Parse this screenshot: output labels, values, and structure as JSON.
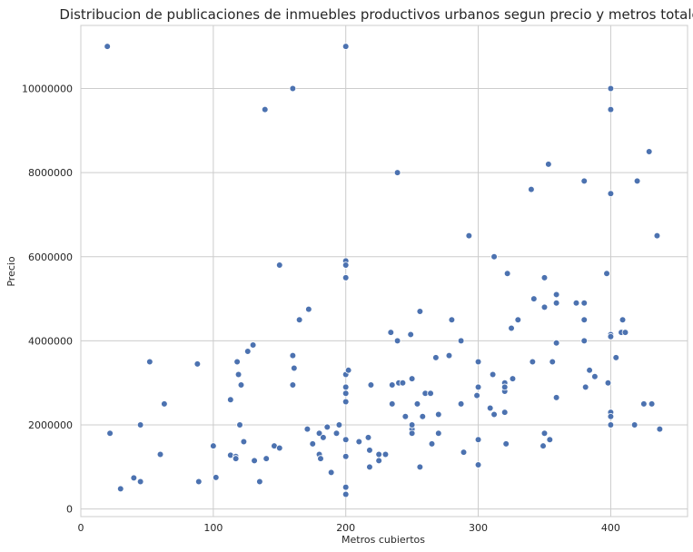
{
  "chart_data": {
    "type": "scatter",
    "title": "Distribucion de publicaciones de inmuebles productivos urbanos segun precio y metros totales",
    "xlabel": "Metros cubiertos",
    "ylabel": "Precio",
    "xlim": [
      0,
      458
    ],
    "ylim": [
      -180000,
      11500000
    ],
    "xticks": [
      0,
      100,
      200,
      300,
      400
    ],
    "yticks": [
      0,
      2000000,
      4000000,
      6000000,
      8000000,
      10000000
    ],
    "xtick_labels": [
      "0",
      "100",
      "200",
      "300",
      "400"
    ],
    "ytick_labels": [
      "0",
      "2000000",
      "4000000",
      "6000000",
      "8000000",
      "10000000"
    ],
    "grid": true,
    "marker_color": "#4c72b0",
    "points": [
      [
        20,
        11000000
      ],
      [
        22,
        1800000
      ],
      [
        30,
        480000
      ],
      [
        40,
        740000
      ],
      [
        45,
        650000
      ],
      [
        45,
        2000000
      ],
      [
        52,
        3500000
      ],
      [
        60,
        1300000
      ],
      [
        63,
        2500000
      ],
      [
        88,
        3450000
      ],
      [
        89,
        650000
      ],
      [
        100,
        1500000
      ],
      [
        102,
        750000
      ],
      [
        113,
        1280000
      ],
      [
        113,
        2600000
      ],
      [
        117,
        1250000
      ],
      [
        117,
        1200000
      ],
      [
        118,
        3500000
      ],
      [
        119,
        3200000
      ],
      [
        120,
        2000000
      ],
      [
        121,
        2950000
      ],
      [
        123,
        1600000
      ],
      [
        126,
        3750000
      ],
      [
        130,
        3900000
      ],
      [
        131,
        1150000
      ],
      [
        135,
        650000
      ],
      [
        139,
        9500000
      ],
      [
        140,
        1200000
      ],
      [
        146,
        1500000
      ],
      [
        150,
        1450000
      ],
      [
        150,
        5800000
      ],
      [
        160,
        10000000
      ],
      [
        160,
        3650000
      ],
      [
        160,
        2950000
      ],
      [
        161,
        3350000
      ],
      [
        165,
        4500000
      ],
      [
        171,
        1900000
      ],
      [
        172,
        4750000
      ],
      [
        175,
        1550000
      ],
      [
        180,
        1300000
      ],
      [
        180,
        1800000
      ],
      [
        181,
        1200000
      ],
      [
        183,
        1700000
      ],
      [
        186,
        1950000
      ],
      [
        189,
        870000
      ],
      [
        193,
        1800000
      ],
      [
        195,
        2000000
      ],
      [
        200,
        11000000
      ],
      [
        200,
        5900000
      ],
      [
        200,
        5800000
      ],
      [
        200,
        5500000
      ],
      [
        200,
        3200000
      ],
      [
        200,
        2900000
      ],
      [
        200,
        2750000
      ],
      [
        200,
        2550000
      ],
      [
        200,
        1650000
      ],
      [
        200,
        1250000
      ],
      [
        200,
        520000
      ],
      [
        200,
        350000
      ],
      [
        202,
        3300000
      ],
      [
        210,
        1600000
      ],
      [
        217,
        1700000
      ],
      [
        218,
        1400000
      ],
      [
        218,
        1000000
      ],
      [
        219,
        2950000
      ],
      [
        225,
        1300000
      ],
      [
        225,
        1150000
      ],
      [
        230,
        1300000
      ],
      [
        234,
        4200000
      ],
      [
        235,
        2950000
      ],
      [
        235,
        2500000
      ],
      [
        239,
        8000000
      ],
      [
        239,
        4000000
      ],
      [
        240,
        3000000
      ],
      [
        243,
        3000000
      ],
      [
        245,
        2200000
      ],
      [
        249,
        4150000
      ],
      [
        250,
        3100000
      ],
      [
        250,
        1900000
      ],
      [
        250,
        1800000
      ],
      [
        250,
        2000000
      ],
      [
        254,
        2500000
      ],
      [
        256,
        1000000
      ],
      [
        256,
        4700000
      ],
      [
        258,
        2200000
      ],
      [
        260,
        2750000
      ],
      [
        264,
        2750000
      ],
      [
        265,
        1550000
      ],
      [
        268,
        3600000
      ],
      [
        270,
        1800000
      ],
      [
        270,
        2250000
      ],
      [
        278,
        3650000
      ],
      [
        280,
        4500000
      ],
      [
        287,
        4000000
      ],
      [
        287,
        2500000
      ],
      [
        289,
        1350000
      ],
      [
        293,
        6500000
      ],
      [
        299,
        2700000
      ],
      [
        300,
        3500000
      ],
      [
        300,
        2900000
      ],
      [
        300,
        1650000
      ],
      [
        300,
        1050000
      ],
      [
        309,
        2400000
      ],
      [
        311,
        3200000
      ],
      [
        312,
        2250000
      ],
      [
        312,
        6000000
      ],
      [
        320,
        3000000
      ],
      [
        320,
        2800000
      ],
      [
        320,
        2900000
      ],
      [
        320,
        2300000
      ],
      [
        322,
        5600000
      ],
      [
        321,
        1550000
      ],
      [
        325,
        4300000
      ],
      [
        326,
        3100000
      ],
      [
        330,
        4500000
      ],
      [
        340,
        7600000
      ],
      [
        341,
        3500000
      ],
      [
        342,
        5000000
      ],
      [
        349,
        1500000
      ],
      [
        350,
        5500000
      ],
      [
        350,
        4800000
      ],
      [
        350,
        1800000
      ],
      [
        353,
        8200000
      ],
      [
        354,
        1650000
      ],
      [
        356,
        3500000
      ],
      [
        359,
        5100000
      ],
      [
        359,
        4900000
      ],
      [
        359,
        3950000
      ],
      [
        359,
        2650000
      ],
      [
        374,
        4900000
      ],
      [
        380,
        7800000
      ],
      [
        380,
        4900000
      ],
      [
        380,
        4500000
      ],
      [
        380,
        4000000
      ],
      [
        381,
        2900000
      ],
      [
        384,
        3300000
      ],
      [
        388,
        3150000
      ],
      [
        397,
        5600000
      ],
      [
        398,
        3000000
      ],
      [
        400,
        10000000
      ],
      [
        400,
        9500000
      ],
      [
        400,
        7500000
      ],
      [
        400,
        4150000
      ],
      [
        400,
        4100000
      ],
      [
        400,
        2300000
      ],
      [
        400,
        2200000
      ],
      [
        400,
        2000000
      ],
      [
        404,
        3600000
      ],
      [
        408,
        4200000
      ],
      [
        409,
        4500000
      ],
      [
        411,
        4200000
      ],
      [
        418,
        2000000
      ],
      [
        420,
        7800000
      ],
      [
        425,
        2500000
      ],
      [
        429,
        8500000
      ],
      [
        431,
        2500000
      ],
      [
        435,
        6500000
      ],
      [
        437,
        1900000
      ]
    ]
  }
}
